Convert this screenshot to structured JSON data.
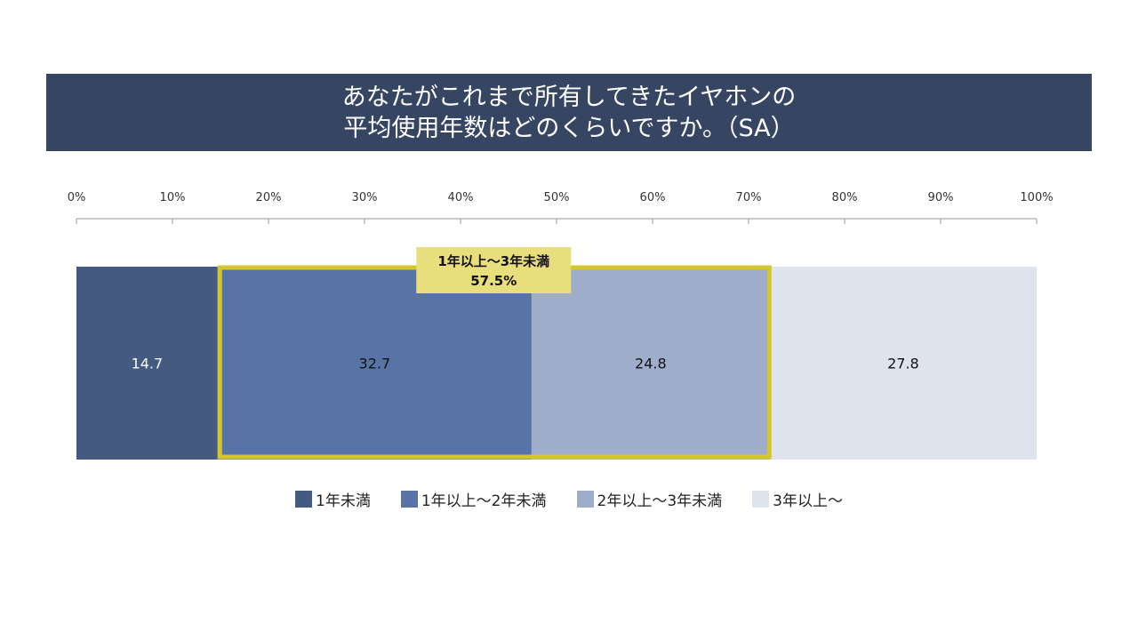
{
  "chart_data": {
    "type": "bar",
    "orientation": "horizontal-stacked-100",
    "title_lines": [
      "あなたがこれまで所有してきたイヤホンの",
      "平均使用年数はどのくらいですか。（SA）"
    ],
    "xticks": [
      "0%",
      "10%",
      "20%",
      "30%",
      "40%",
      "50%",
      "60%",
      "70%",
      "80%",
      "90%",
      "100%"
    ],
    "xlim": [
      0,
      100
    ],
    "series": [
      {
        "name": "1年未満",
        "value": 14.7,
        "color": "#455a80",
        "label_color": "#ffffff"
      },
      {
        "name": "1年以上～2年未満",
        "value": 32.7,
        "color": "#5873a5",
        "label_color": "#111111"
      },
      {
        "name": "2年以上～3年未満",
        "value": 24.8,
        "color": "#9eadc9",
        "label_color": "#111111"
      },
      {
        "name": "3年以上～",
        "value": 27.8,
        "color": "#dfe3ee",
        "label_color": "#111111"
      }
    ],
    "annotation": {
      "line1": "1年以上～3年未満",
      "line2": "57.5%",
      "from_series": 1,
      "to_series": 2,
      "border_color": "#d4c62c",
      "fill": "#e8de7c"
    },
    "legend_position": "bottom"
  }
}
